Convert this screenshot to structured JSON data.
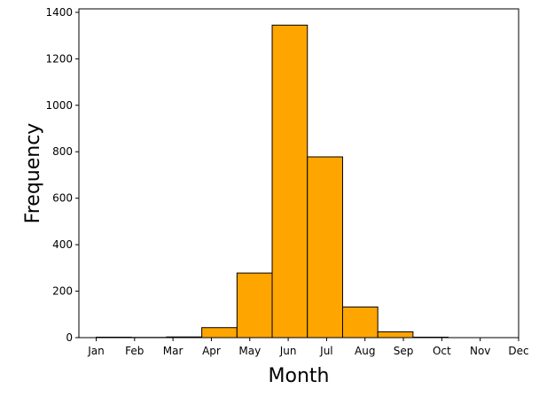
{
  "chart_data": {
    "type": "bar",
    "title": "",
    "xlabel": "Month",
    "ylabel": "Frequency",
    "x_ticks": [
      "Jan",
      "Feb",
      "Mar",
      "Apr",
      "May",
      "Jun",
      "Jul",
      "Aug",
      "Sep",
      "Oct",
      "Nov",
      "Dec"
    ],
    "y_ticks": [
      0,
      200,
      400,
      600,
      800,
      1000,
      1200,
      1400
    ],
    "bins": [
      {
        "start": 1.0,
        "end": 1.917,
        "value": 2
      },
      {
        "start": 1.917,
        "end": 2.833,
        "value": 1
      },
      {
        "start": 2.833,
        "end": 3.75,
        "value": 3
      },
      {
        "start": 3.75,
        "end": 4.667,
        "value": 43
      },
      {
        "start": 4.667,
        "end": 5.583,
        "value": 278
      },
      {
        "start": 5.583,
        "end": 6.5,
        "value": 1345
      },
      {
        "start": 6.5,
        "end": 7.417,
        "value": 778
      },
      {
        "start": 7.417,
        "end": 8.333,
        "value": 132
      },
      {
        "start": 8.333,
        "end": 9.25,
        "value": 25
      },
      {
        "start": 9.25,
        "end": 10.167,
        "value": 2
      },
      {
        "start": 10.167,
        "end": 11.083,
        "value": 0
      },
      {
        "start": 11.083,
        "end": 12.0,
        "value": 0
      }
    ],
    "xlim": [
      0.55,
      12.0
    ],
    "ylim": [
      0,
      1415
    ],
    "grid": false,
    "colors": {
      "bar_fill": "#FFA500",
      "bar_edge": "#000000"
    }
  }
}
